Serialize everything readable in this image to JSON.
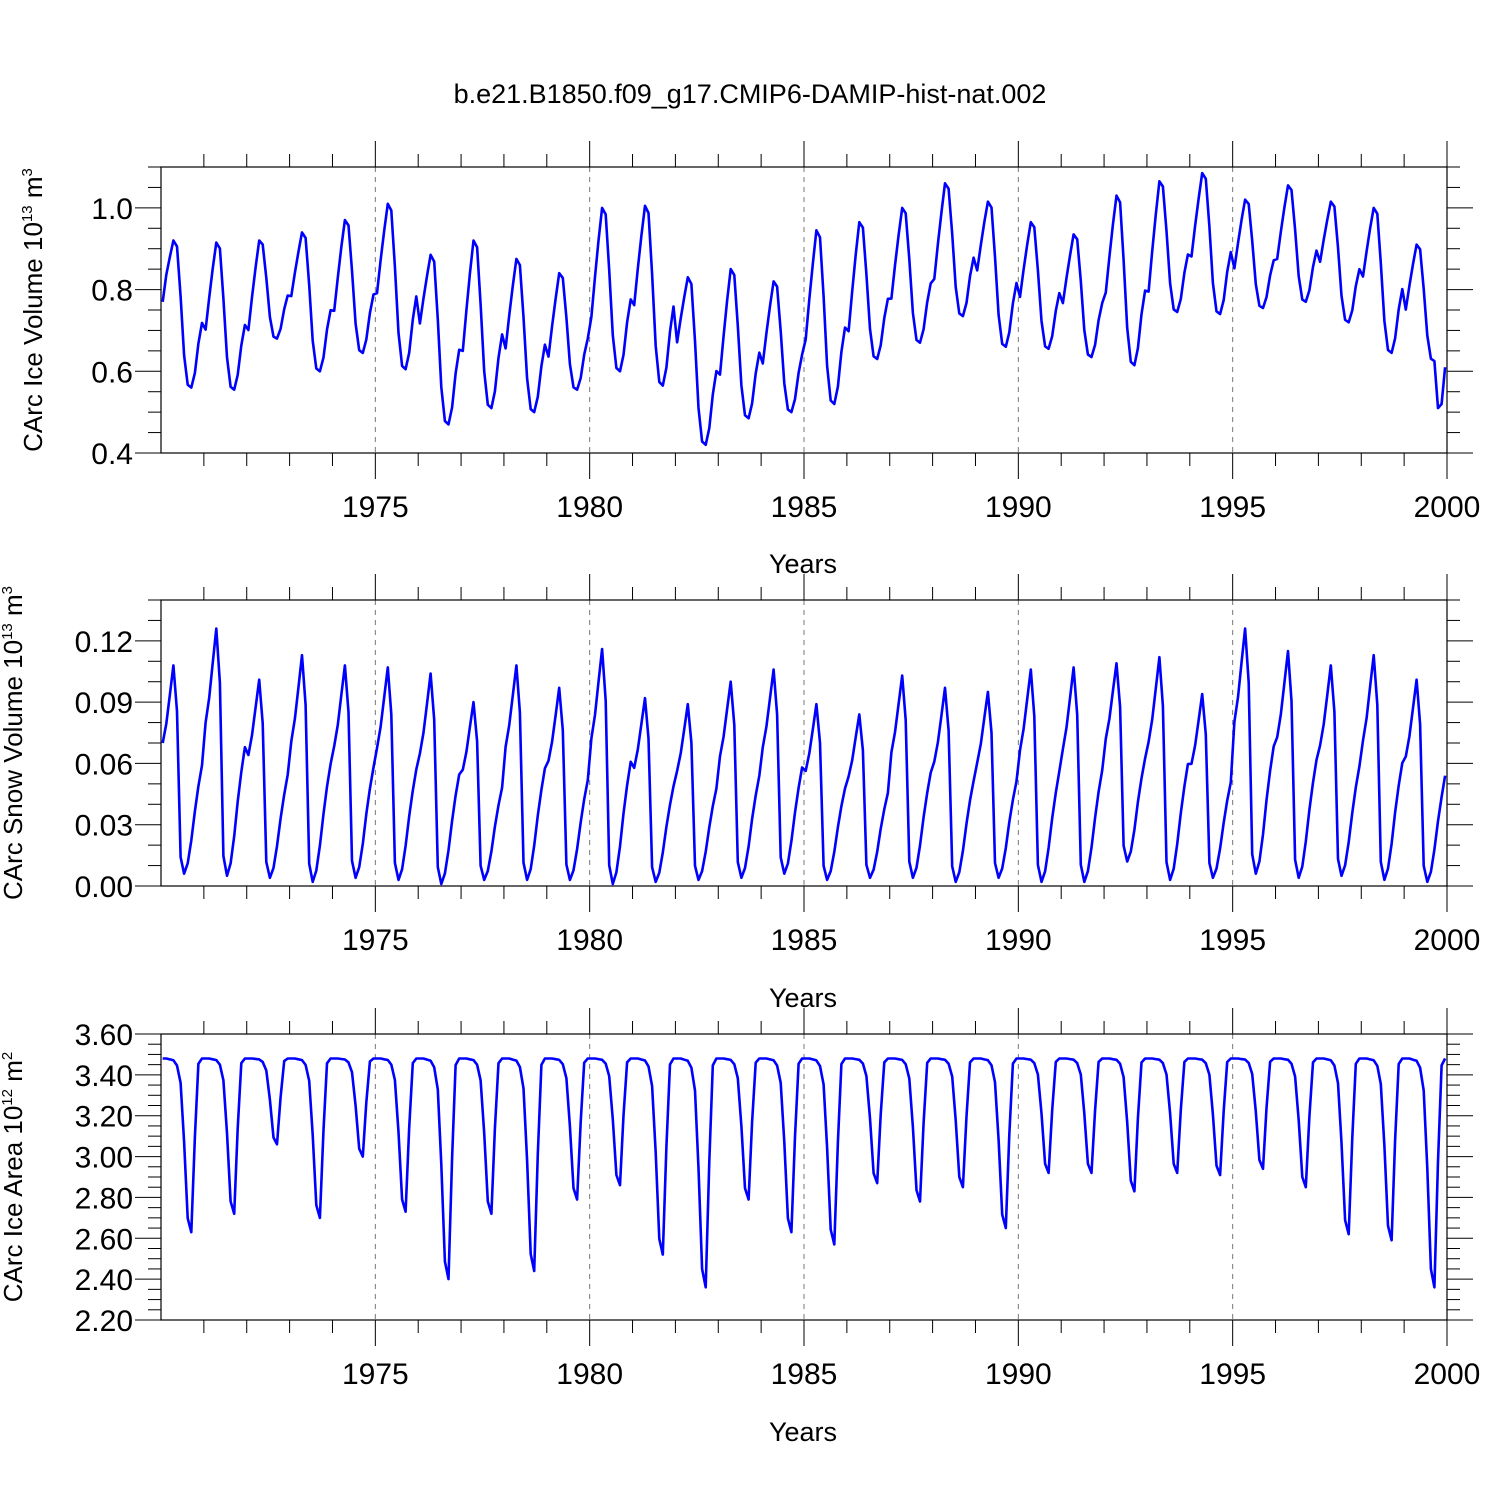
{
  "title": "b.e21.B1850.f09_g17.CMIP6-DAMIP-hist-nat.002",
  "colors": {
    "series": "#0000ff",
    "axis": "#000000",
    "grid": "#777777",
    "background": "#ffffff"
  },
  "chart_data": [
    {
      "type": "line",
      "id": "ice-volume",
      "ylabel": "CArc Ice Volume 10",
      "ylabel_exp": "13",
      "ylabel_unit": "m",
      "ylabel_unit_exp": "3",
      "xlabel": "Years",
      "xlim": [
        1970,
        2000
      ],
      "ylim": [
        0.4,
        1.1
      ],
      "yticks": [
        0.4,
        0.6,
        0.8,
        1.0
      ],
      "ytick_labels": [
        "0.4",
        "0.6",
        "0.8",
        "1.0"
      ],
      "yminor_step": 0.05,
      "xticks": [
        1975,
        1980,
        1985,
        1990,
        1995,
        2000
      ],
      "xtick_labels": [
        "1975",
        "1980",
        "1985",
        "1990",
        "1995",
        "2000"
      ],
      "grid_x": "dashed vertical at major x ticks",
      "series": [
        {
          "name": "CArc Ice Volume",
          "x_start": 1970.04,
          "x_step": 0.0833333,
          "annual_max": [
            0.92,
            0.915,
            0.92,
            0.94,
            0.97,
            1.01,
            0.885,
            0.92,
            0.875,
            0.84,
            1.0,
            1.005,
            0.83,
            0.85,
            0.82,
            0.945,
            0.965,
            1.0,
            1.06,
            1.015,
            0.965,
            0.935,
            1.03,
            1.065,
            1.085,
            1.02,
            1.055,
            1.015,
            1.0,
            0.91
          ],
          "annual_min": [
            0.56,
            0.555,
            0.68,
            0.6,
            0.645,
            0.605,
            0.47,
            0.51,
            0.5,
            0.555,
            0.6,
            0.565,
            0.42,
            0.485,
            0.5,
            0.52,
            0.63,
            0.67,
            0.735,
            0.66,
            0.655,
            0.635,
            0.615,
            0.745,
            0.74,
            0.755,
            0.77,
            0.72,
            0.645,
            0.625
          ],
          "end_min": 0.51,
          "end_value": 0.61
        }
      ]
    },
    {
      "type": "line",
      "id": "snow-volume",
      "ylabel": "CArc Snow Volume 10",
      "ylabel_exp": "13",
      "ylabel_unit": "m",
      "ylabel_unit_exp": "3",
      "xlabel": "Years",
      "xlim": [
        1970,
        2000
      ],
      "ylim": [
        0.0,
        0.14
      ],
      "yticks": [
        0.0,
        0.03,
        0.06,
        0.09,
        0.12
      ],
      "ytick_labels": [
        "0.00",
        "0.03",
        "0.06",
        "0.09",
        "0.12"
      ],
      "yminor_step": 0.01,
      "xticks": [
        1975,
        1980,
        1985,
        1990,
        1995,
        2000
      ],
      "xtick_labels": [
        "1975",
        "1980",
        "1985",
        "1990",
        "1995",
        "2000"
      ],
      "grid_x": "dashed vertical at major x ticks",
      "series": [
        {
          "name": "CArc Snow Volume",
          "x_start": 1970.04,
          "x_step": 0.0833333,
          "start_value": 0.07,
          "annual_max": [
            0.108,
            0.126,
            0.101,
            0.113,
            0.108,
            0.107,
            0.104,
            0.09,
            0.108,
            0.097,
            0.116,
            0.092,
            0.089,
            0.1,
            0.106,
            0.089,
            0.084,
            0.103,
            0.097,
            0.095,
            0.106,
            0.107,
            0.109,
            0.112,
            0.094,
            0.126,
            0.115,
            0.108,
            0.113,
            0.101
          ],
          "annual_min": [
            0.006,
            0.005,
            0.004,
            0.002,
            0.004,
            0.003,
            0.001,
            0.003,
            0.003,
            0.003,
            0.001,
            0.002,
            0.003,
            0.004,
            0.006,
            0.003,
            0.004,
            0.004,
            0.002,
            0.004,
            0.002,
            0.002,
            0.012,
            0.003,
            0.004,
            0.006,
            0.004,
            0.005,
            0.003,
            0.002
          ],
          "end_value": 0.054
        }
      ]
    },
    {
      "type": "line",
      "id": "ice-area",
      "ylabel": "CArc Ice Area 10",
      "ylabel_exp": "12",
      "ylabel_unit": "m",
      "ylabel_unit_exp": "2",
      "xlabel": "Years",
      "xlim": [
        1970,
        2000
      ],
      "ylim": [
        2.2,
        3.6
      ],
      "yticks": [
        2.2,
        2.4,
        2.6,
        2.8,
        3.0,
        3.2,
        3.4,
        3.6
      ],
      "ytick_labels": [
        "2.20",
        "2.40",
        "2.60",
        "2.80",
        "3.00",
        "3.20",
        "3.40",
        "3.60"
      ],
      "yminor_step": 0.05,
      "xticks": [
        1975,
        1980,
        1985,
        1990,
        1995,
        2000
      ],
      "xtick_labels": [
        "1975",
        "1980",
        "1985",
        "1990",
        "1995",
        "2000"
      ],
      "grid_x": "dashed vertical at major x ticks",
      "series": [
        {
          "name": "CArc Ice Area",
          "x_start": 1970.04,
          "x_step": 0.0833333,
          "winter_value": 3.48,
          "annual_min": [
            2.63,
            2.72,
            3.06,
            2.7,
            3.0,
            2.73,
            2.4,
            2.72,
            2.44,
            2.79,
            2.86,
            2.52,
            2.36,
            2.79,
            2.63,
            2.57,
            2.87,
            2.78,
            2.85,
            2.65,
            2.92,
            2.92,
            2.83,
            2.92,
            2.91,
            2.94,
            2.85,
            2.62,
            2.59,
            2.36
          ],
          "end_value": 3.48
        }
      ]
    }
  ]
}
